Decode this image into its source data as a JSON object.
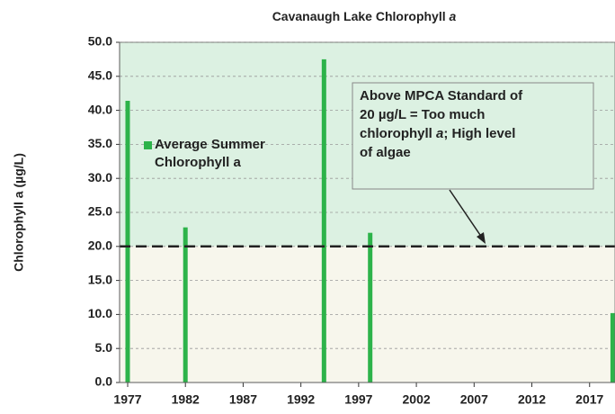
{
  "chart_data": {
    "type": "bar",
    "title": [
      "Cavanaugh Lake Chlorophyll ",
      "a"
    ],
    "ylabel": "Chlorophyll a (µg/L)",
    "x": [
      1977,
      1982,
      1994,
      1998,
      2019
    ],
    "series": [
      {
        "name": "Average Summer Chlorophyll a",
        "color": "#2db34a",
        "values": [
          41.4,
          22.8,
          47.5,
          22.0,
          10.2
        ]
      }
    ],
    "xlim": [
      1976.3,
      2019.2
    ],
    "xticks": [
      1977,
      1982,
      1987,
      1992,
      1997,
      2002,
      2007,
      2012,
      2017
    ],
    "ylim": [
      0,
      50
    ],
    "yticks": [
      {
        "value": 0,
        "label": "0.0"
      },
      {
        "value": 5,
        "label": "5.0"
      },
      {
        "value": 10,
        "label": "10.0"
      },
      {
        "value": 15,
        "label": "15.0"
      },
      {
        "value": 20,
        "label": "20.0"
      },
      {
        "value": 25,
        "label": "25.0"
      },
      {
        "value": 30,
        "label": "30.0"
      },
      {
        "value": 35,
        "label": "35.0"
      },
      {
        "value": 40,
        "label": "40.0"
      },
      {
        "value": 45,
        "label": "45.0"
      },
      {
        "value": 50,
        "label": "50.0"
      }
    ],
    "grid": true,
    "standard": 20,
    "annotation": [
      [
        "Above MPCA Standard of"
      ],
      [
        "20 µg/L = Too much"
      ],
      [
        "chlorophyll ",
        "a",
        "; High level"
      ],
      [
        "of algae"
      ]
    ]
  }
}
